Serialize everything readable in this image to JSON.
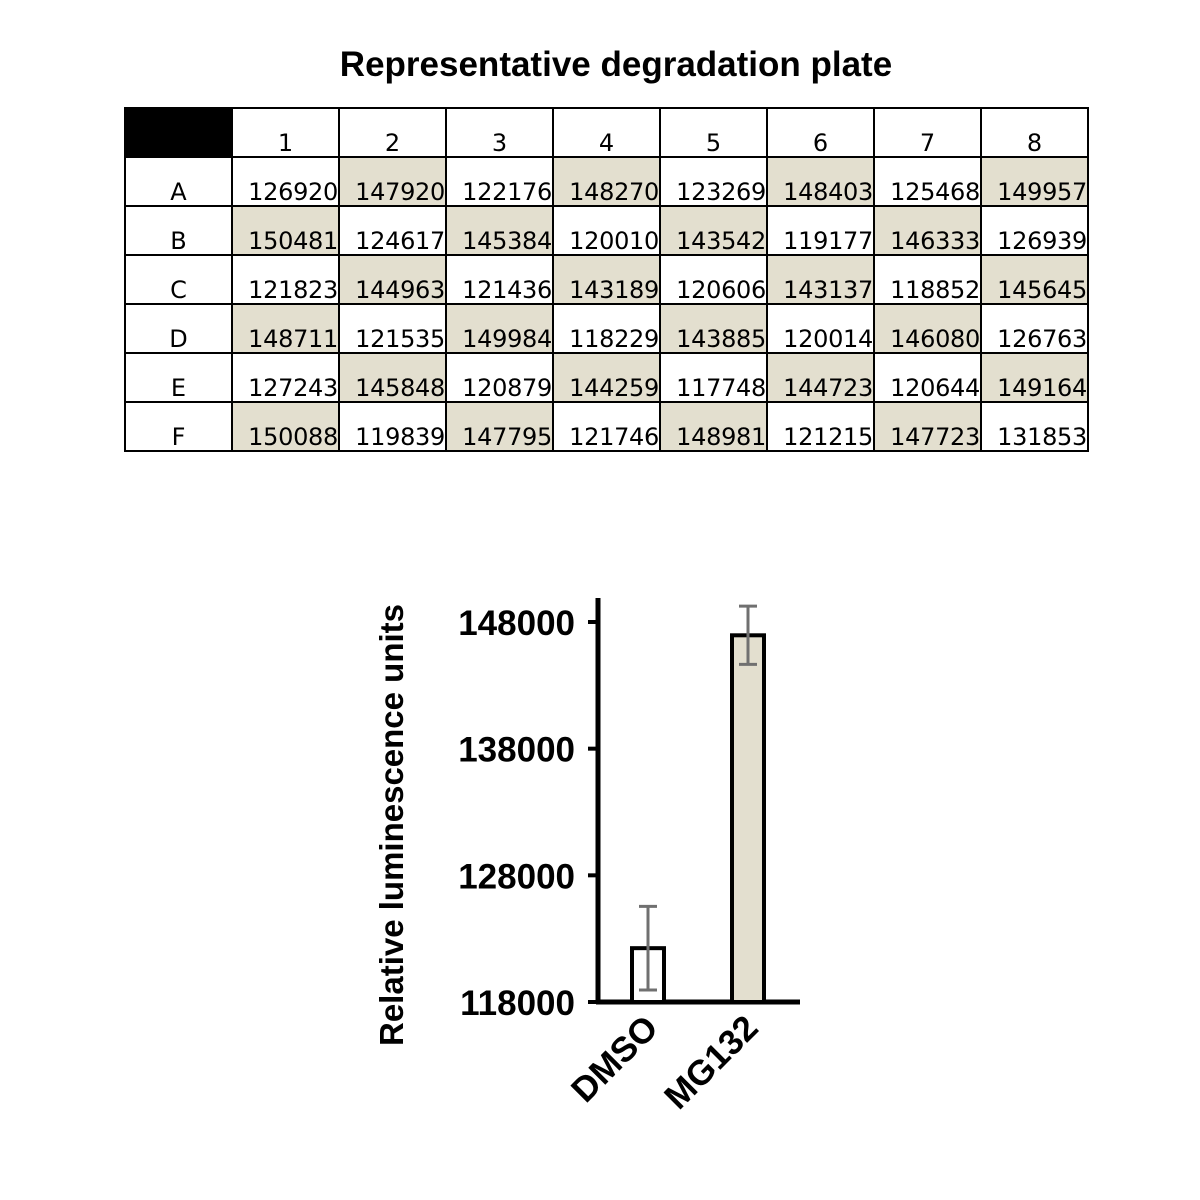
{
  "title": "Representative degradation plate",
  "colors": {
    "mg132_fill": "#e3dfcf",
    "dmso_fill": "#ffffff",
    "error_bar": "#707070",
    "header_block": "#000000"
  },
  "plate": {
    "columns": [
      "1",
      "2",
      "3",
      "4",
      "5",
      "6",
      "7",
      "8"
    ],
    "rows": [
      {
        "label": "A",
        "values": [
          "126920",
          "147920",
          "122176",
          "148270",
          "123269",
          "148403",
          "125468",
          "149957"
        ],
        "shaded_columns": [
          2,
          4,
          6,
          8
        ]
      },
      {
        "label": "B",
        "values": [
          "150481",
          "124617",
          "145384",
          "120010",
          "143542",
          "119177",
          "146333",
          "126939"
        ],
        "shaded_columns": [
          1,
          3,
          5,
          7
        ]
      },
      {
        "label": "C",
        "values": [
          "121823",
          "144963",
          "121436",
          "143189",
          "120606",
          "143137",
          "118852",
          "145645"
        ],
        "shaded_columns": [
          2,
          4,
          6,
          8
        ]
      },
      {
        "label": "D",
        "values": [
          "148711",
          "121535",
          "149984",
          "118229",
          "143885",
          "120014",
          "146080",
          "126763"
        ],
        "shaded_columns": [
          1,
          3,
          5,
          7
        ]
      },
      {
        "label": "E",
        "values": [
          "127243",
          "145848",
          "120879",
          "144259",
          "117748",
          "144723",
          "120644",
          "149164"
        ],
        "shaded_columns": [
          2,
          4,
          6,
          8
        ]
      },
      {
        "label": "F",
        "values": [
          "150088",
          "119839",
          "147795",
          "121746",
          "148981",
          "121215",
          "147723",
          "131853"
        ],
        "shaded_columns": [
          1,
          3,
          5,
          7
        ]
      }
    ]
  },
  "chart_data": {
    "type": "bar",
    "categories": [
      "DMSO",
      "MG132"
    ],
    "values": [
      122250,
      146950
    ],
    "error": [
      3300,
      2300
    ],
    "ylabel": "Relative luminescence units",
    "ylim": [
      118000,
      150000
    ],
    "yticks": [
      118000,
      128000,
      138000,
      148000
    ],
    "ytick_labels": [
      "118000",
      "128000",
      "138000",
      "148000"
    ],
    "grid": false,
    "bar_colors": [
      "#ffffff",
      "#e3dfcf"
    ]
  }
}
